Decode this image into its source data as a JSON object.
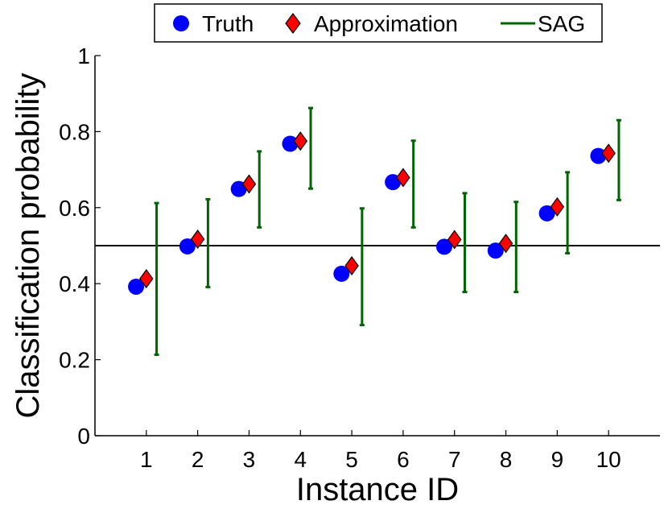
{
  "chart_data": {
    "type": "scatter",
    "title": "",
    "xlabel": "Instance ID",
    "ylabel": "Classification probability",
    "xlim": [
      0,
      11
    ],
    "ylim": [
      0,
      1
    ],
    "grid": false,
    "legend_position": "top",
    "x_ticks": [
      "1",
      "2",
      "3",
      "4",
      "5",
      "6",
      "7",
      "8",
      "9",
      "10"
    ],
    "y_ticks": [
      "0",
      "0.2",
      "0.4",
      "0.6",
      "0.8",
      "1"
    ],
    "y_tick_values": [
      0,
      0.2,
      0.4,
      0.6,
      0.8,
      1
    ],
    "reference_line": {
      "y": 0.5,
      "color": "#000000"
    },
    "colors": {
      "truth": "#0000ff",
      "approximation": "#ff0000",
      "sag": "#006400"
    },
    "series": [
      {
        "name": "Truth",
        "marker": "circle",
        "x": [
          1,
          2,
          3,
          4,
          5,
          6,
          7,
          8,
          9,
          10
        ],
        "values": [
          0.392,
          0.498,
          0.649,
          0.768,
          0.426,
          0.667,
          0.497,
          0.487,
          0.585,
          0.736
        ]
      },
      {
        "name": "Approximation",
        "marker": "diamond",
        "x": [
          1,
          2,
          3,
          4,
          5,
          6,
          7,
          8,
          9,
          10
        ],
        "values": [
          0.413,
          0.517,
          0.662,
          0.775,
          0.447,
          0.679,
          0.516,
          0.506,
          0.602,
          0.743
        ]
      },
      {
        "name": "SAG",
        "marker": "errorbar",
        "x": [
          1,
          2,
          3,
          4,
          5,
          6,
          7,
          8,
          9,
          10
        ],
        "lower": [
          0.213,
          0.391,
          0.548,
          0.65,
          0.291,
          0.548,
          0.378,
          0.378,
          0.48,
          0.62
        ],
        "upper": [
          0.612,
          0.622,
          0.748,
          0.862,
          0.598,
          0.776,
          0.638,
          0.615,
          0.693,
          0.83
        ]
      }
    ]
  }
}
